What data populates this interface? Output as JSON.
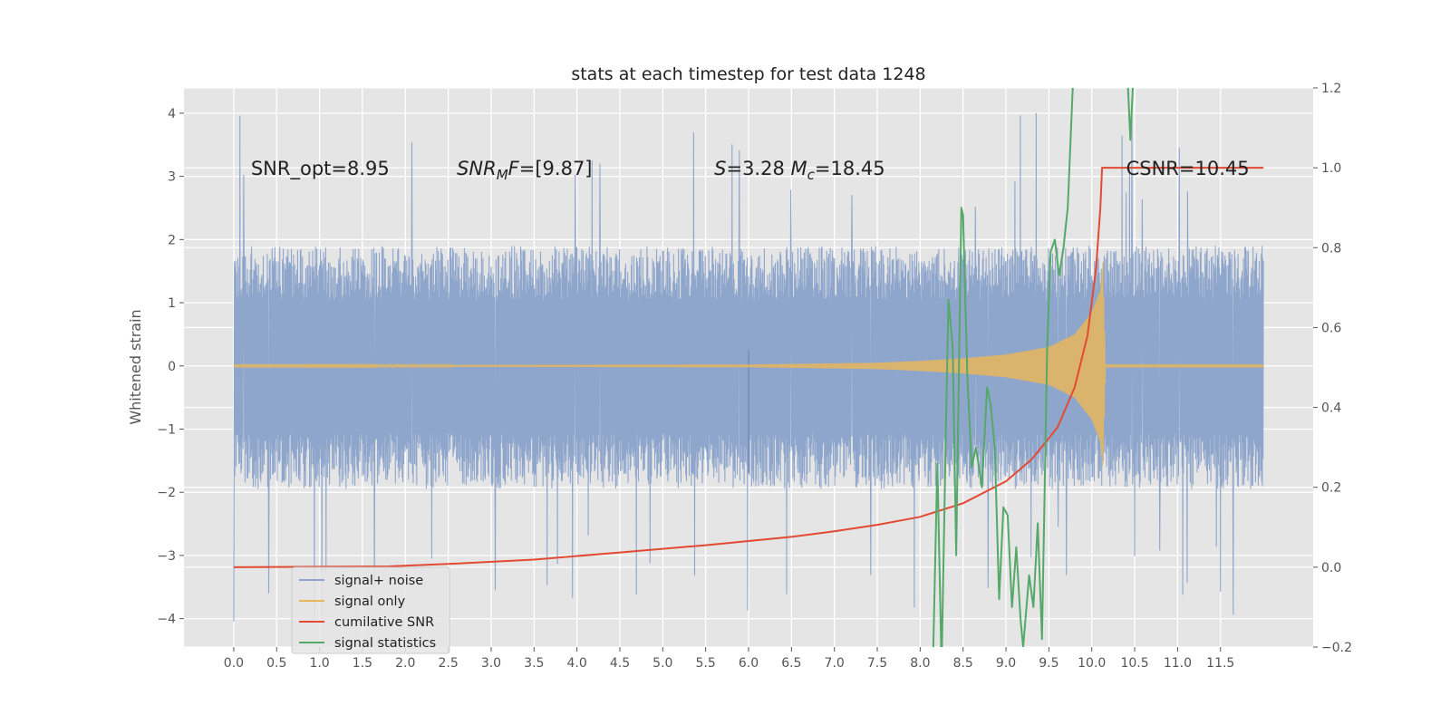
{
  "chart_data": {
    "type": "line",
    "title": "stats at each timestep for test data 1248",
    "ylabel": "Whitened strain",
    "xlim": [
      -0.58,
      12.58
    ],
    "ylim": [
      -4.45,
      4.4
    ],
    "y2lim": [
      -0.2,
      1.2
    ],
    "x_ticks": [
      0.0,
      0.5,
      1.0,
      1.5,
      2.0,
      2.5,
      3.0,
      3.5,
      4.0,
      4.5,
      5.0,
      5.5,
      6.0,
      6.5,
      7.0,
      7.5,
      8.0,
      8.5,
      9.0,
      9.5,
      10.0,
      10.5,
      11.0,
      11.5
    ],
    "x_tick_labels": [
      "0.0",
      "0.5",
      "1.0",
      "1.5",
      "2.0",
      "2.5",
      "3.0",
      "3.5",
      "4.0",
      "4.5",
      "5.0",
      "5.5",
      "6.0",
      "6.5",
      "7.0",
      "7.5",
      "8.0",
      "8.5",
      "9.0",
      "9.5",
      "10.0",
      "10.5",
      "11.0",
      "11.5"
    ],
    "y_ticks": [
      -4,
      -3,
      -2,
      -1,
      0,
      1,
      2,
      3,
      4
    ],
    "y_tick_labels": [
      "−4",
      "−3",
      "−2",
      "−1",
      "0",
      "1",
      "2",
      "3",
      "4"
    ],
    "y2_ticks": [
      -0.2,
      0.0,
      0.2,
      0.4,
      0.6,
      0.8,
      1.0,
      1.2
    ],
    "y2_tick_labels": [
      "−0.2",
      "0.0",
      "0.2",
      "0.4",
      "0.6",
      "0.8",
      "1.0",
      "1.2"
    ],
    "grid": true,
    "legend_position": "lower-left",
    "annotations": [
      {
        "text": "SNR_opt=8.95",
        "x": 0.2,
        "y": 3.15,
        "italic": false
      },
      {
        "text": "SNR_MF=[9.87]",
        "x": 2.6,
        "y": 3.15,
        "italic": true
      },
      {
        "text": "S=3.28   M_c=18.45",
        "x": 5.6,
        "y": 3.15,
        "italic": true
      },
      {
        "text": "CSNR=10.45",
        "x": 10.4,
        "y": 3.15,
        "italic": false
      }
    ],
    "annotation_parts": [
      [
        {
          "t": "SNR_opt=8.95",
          "i": false,
          "sub": false
        }
      ],
      [
        {
          "t": "SNR",
          "i": true,
          "sub": false
        },
        {
          "t": "M",
          "i": true,
          "sub": true
        },
        {
          "t": "F",
          "i": true,
          "sub": false
        },
        {
          "t": "=[9.87]",
          "i": false,
          "sub": false
        }
      ],
      [
        {
          "t": "S",
          "i": true,
          "sub": false
        },
        {
          "t": "=3.28   ",
          "i": false,
          "sub": false
        },
        {
          "t": "M",
          "i": true,
          "sub": false
        },
        {
          "t": "c",
          "i": true,
          "sub": true
        },
        {
          "t": "=18.45",
          "i": false,
          "sub": false
        }
      ],
      [
        {
          "t": "CSNR=10.45",
          "i": false,
          "sub": false
        }
      ]
    ],
    "series": [
      {
        "name": "signal+ noise",
        "axis": "left",
        "color": "#8fa6cc",
        "kind": "noise",
        "x_range": [
          0.0,
          12.0
        ],
        "envelope": [
          1.9,
          -1.95
        ],
        "spike_max": 4.05,
        "spike_min": -4.05,
        "transient": {
          "x": 6.0,
          "y_min": -1.7,
          "y_max": 0.25
        }
      },
      {
        "name": "signal only",
        "axis": "left",
        "color": "#e8b65a",
        "kind": "chirp",
        "x_range": [
          0.0,
          12.0
        ],
        "envelope_points": [
          [
            0.0,
            0.01
          ],
          [
            6.0,
            0.02
          ],
          [
            7.5,
            0.05
          ],
          [
            8.0,
            0.08
          ],
          [
            8.5,
            0.12
          ],
          [
            9.0,
            0.18
          ],
          [
            9.5,
            0.3
          ],
          [
            9.8,
            0.5
          ],
          [
            10.0,
            0.85
          ],
          [
            10.1,
            1.2
          ],
          [
            10.13,
            1.65
          ],
          [
            10.16,
            0.0
          ]
        ]
      },
      {
        "name": "cumilative SNR",
        "axis": "right",
        "color": "#e24a33",
        "points": [
          [
            0.0,
            0.0
          ],
          [
            1.0,
            0.001
          ],
          [
            1.8,
            0.002
          ],
          [
            2.5,
            0.008
          ],
          [
            3.5,
            0.019
          ],
          [
            4.5,
            0.037
          ],
          [
            5.5,
            0.055
          ],
          [
            6.5,
            0.076
          ],
          [
            7.0,
            0.09
          ],
          [
            7.5,
            0.106
          ],
          [
            8.0,
            0.126
          ],
          [
            8.5,
            0.16
          ],
          [
            9.0,
            0.215
          ],
          [
            9.3,
            0.27
          ],
          [
            9.6,
            0.35
          ],
          [
            9.8,
            0.45
          ],
          [
            9.95,
            0.58
          ],
          [
            10.05,
            0.75
          ],
          [
            10.1,
            0.9
          ],
          [
            10.12,
            1.0
          ],
          [
            12.0,
            1.0
          ]
        ]
      },
      {
        "name": "signal statistics",
        "axis": "right",
        "color": "#55a868",
        "points": [
          [
            8.15,
            -0.23
          ],
          [
            8.2,
            0.26
          ],
          [
            8.25,
            -0.25
          ],
          [
            8.3,
            0.35
          ],
          [
            8.33,
            0.67
          ],
          [
            8.38,
            0.55
          ],
          [
            8.42,
            0.03
          ],
          [
            8.48,
            0.9
          ],
          [
            8.5,
            0.88
          ],
          [
            8.55,
            0.48
          ],
          [
            8.6,
            0.25
          ],
          [
            8.65,
            0.3
          ],
          [
            8.72,
            0.2
          ],
          [
            8.78,
            0.45
          ],
          [
            8.82,
            0.41
          ],
          [
            8.87,
            0.3
          ],
          [
            8.92,
            -0.08
          ],
          [
            8.97,
            0.15
          ],
          [
            9.02,
            0.13
          ],
          [
            9.07,
            -0.1
          ],
          [
            9.12,
            0.05
          ],
          [
            9.17,
            -0.13
          ],
          [
            9.2,
            -0.2
          ],
          [
            9.27,
            -0.02
          ],
          [
            9.32,
            -0.1
          ],
          [
            9.37,
            0.11
          ],
          [
            9.42,
            -0.18
          ],
          [
            9.48,
            0.55
          ],
          [
            9.52,
            0.79
          ],
          [
            9.57,
            0.82
          ],
          [
            9.62,
            0.73
          ],
          [
            9.67,
            0.8
          ],
          [
            9.72,
            0.9
          ],
          [
            9.78,
            1.21
          ]
        ]
      },
      {
        "name": "signal statistics",
        "axis": "right",
        "color": "#55a868",
        "legend": false,
        "points": [
          [
            10.42,
            1.21
          ],
          [
            10.45,
            1.07
          ],
          [
            10.48,
            1.21
          ]
        ]
      }
    ],
    "legend": [
      {
        "label": "signal+ noise",
        "color": "#8fa6cc"
      },
      {
        "label": "signal only",
        "color": "#e8b65a"
      },
      {
        "label": "cumilative SNR",
        "color": "#e24a33"
      },
      {
        "label": "signal statistics",
        "color": "#55a868"
      }
    ]
  }
}
